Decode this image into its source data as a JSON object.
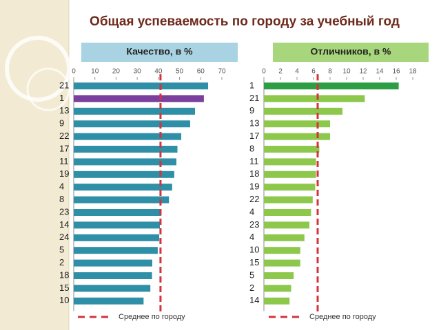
{
  "title": "Общая успеваемость по городу за учебный год",
  "chart_data": [
    {
      "type": "hbar",
      "title": "Качество, в %",
      "categories": [
        "21",
        "1",
        "13",
        "9",
        "22",
        "17",
        "11",
        "19",
        "4",
        "8",
        "23",
        "14",
        "24",
        "5",
        "2",
        "18",
        "15",
        "10"
      ],
      "values": [
        63.5,
        61.5,
        57.3,
        55,
        50.8,
        49,
        48.5,
        47.5,
        46.5,
        45,
        41.4,
        40.7,
        40.4,
        39.7,
        37.1,
        37,
        36.2,
        33
      ],
      "colors": [
        "#2e8fa6",
        "#7b3f9e",
        "#2e8fa6",
        "#2e8fa6",
        "#2e8fa6",
        "#2e8fa6",
        "#2e8fa6",
        "#2e8fa6",
        "#2e8fa6",
        "#2e8fa6",
        "#2e8fa6",
        "#2e8fa6",
        "#2e8fa6",
        "#2e8fa6",
        "#2e8fa6",
        "#2e8fa6",
        "#2e8fa6",
        "#2e8fa6"
      ],
      "xlim": [
        0,
        70
      ],
      "xticks": [
        0,
        10,
        20,
        30,
        40,
        50,
        60,
        70
      ],
      "header_color": "#a9d3e2",
      "average": {
        "name": "Среднее по городу",
        "value": 41,
        "color": "#d3333a"
      }
    },
    {
      "type": "hbar",
      "title": "Отличников, в %",
      "categories": [
        "1",
        "21",
        "9",
        "13",
        "17",
        "8",
        "11",
        "18",
        "19",
        "22",
        "4",
        "23",
        "4",
        "10",
        "15",
        "5",
        "2",
        "14"
      ],
      "values": [
        16.3,
        12.2,
        9.5,
        8,
        8,
        6.7,
        6.3,
        6.3,
        6.2,
        5.9,
        5.7,
        5.5,
        4.9,
        4.4,
        4.4,
        3.6,
        3.3,
        3.1
      ],
      "colors": [
        "#2e9e44",
        "#8dc84d",
        "#8dc84d",
        "#8dc84d",
        "#8dc84d",
        "#8dc84d",
        "#8dc84d",
        "#8dc84d",
        "#8dc84d",
        "#8dc84d",
        "#8dc84d",
        "#8dc84d",
        "#8dc84d",
        "#8dc84d",
        "#8dc84d",
        "#8dc84d",
        "#8dc84d",
        "#8dc84d"
      ],
      "xlim": [
        0,
        18
      ],
      "xticks": [
        0,
        2,
        4,
        6,
        8,
        10,
        12,
        14,
        16,
        18
      ],
      "header_color": "#a8d67c",
      "average": {
        "name": "Среднее по городу",
        "value": 6.5,
        "color": "#d3333a"
      }
    }
  ]
}
